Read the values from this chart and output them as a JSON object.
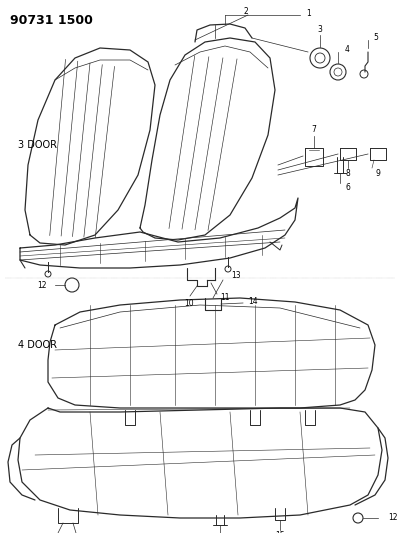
{
  "title": "90731 1500",
  "bg_color": "#ffffff",
  "line_color": "#2a2a2a",
  "fig_width": 4.0,
  "fig_height": 5.33,
  "dpi": 100,
  "section1_label": "3 DOOR",
  "section2_label": "4 DOOR"
}
